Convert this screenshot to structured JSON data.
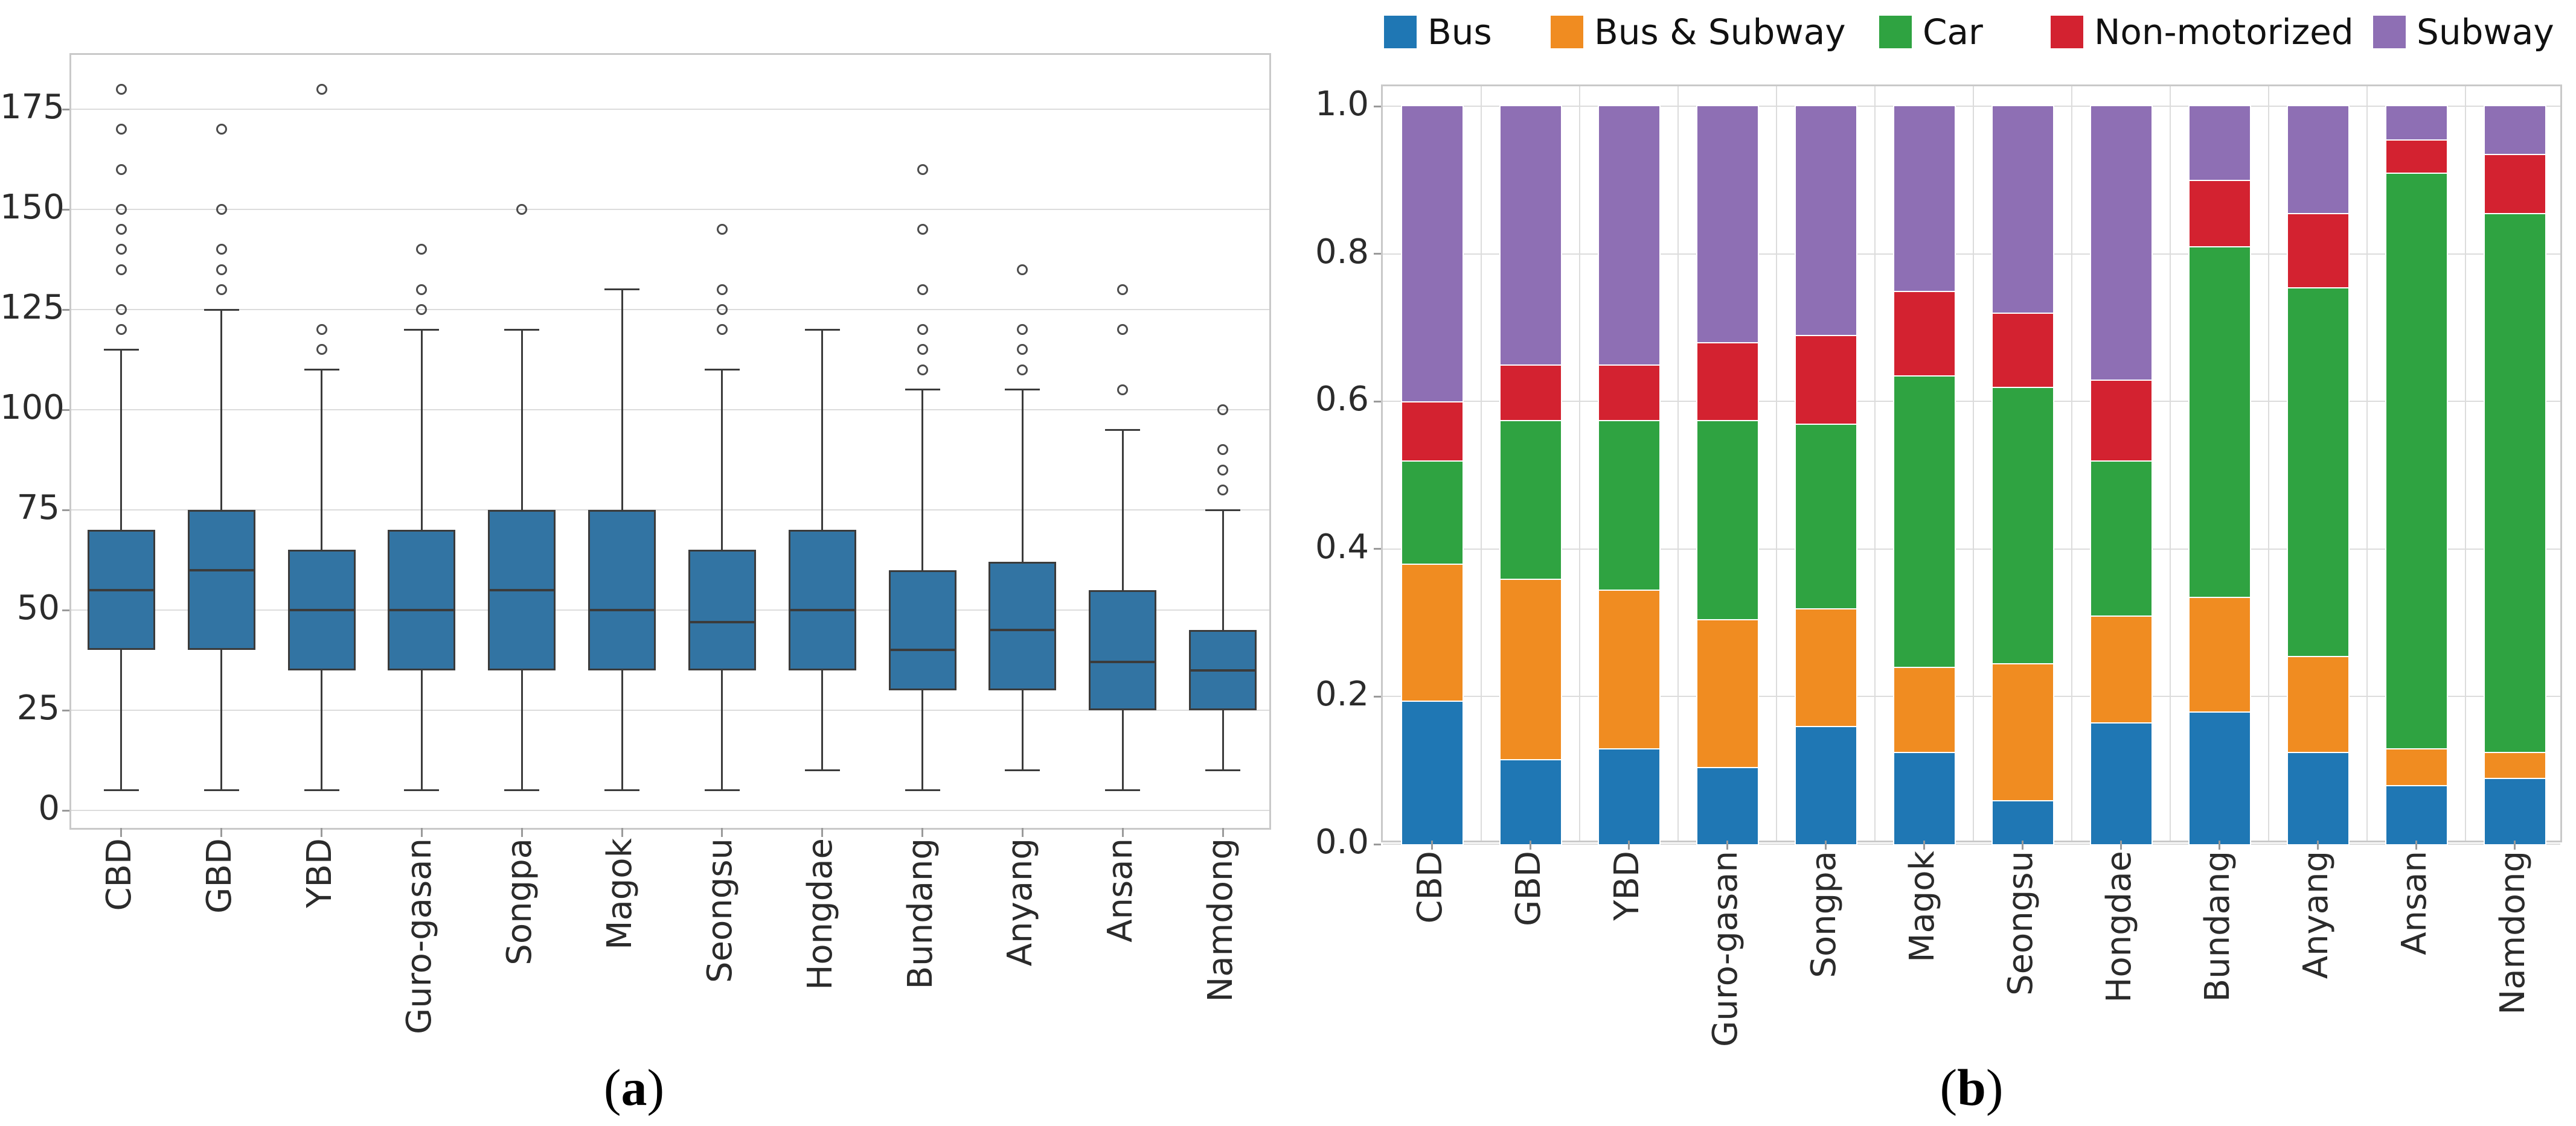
{
  "page": {
    "background": "#ffffff"
  },
  "captions": {
    "a": {
      "open": "(",
      "letter": "a",
      "close": ")"
    },
    "b": {
      "open": "(",
      "letter": "b",
      "close": ")"
    }
  },
  "palette": {
    "box_fill": "#3274a3",
    "box_edge": "#3b3b3b",
    "grid": "#dcdcdc",
    "spine": "#c9c9c9",
    "tick": "#9a9a9a",
    "text": "#2b2b2b",
    "outlier": "#4c4c4c"
  },
  "chart_data": [
    {
      "type": "box",
      "panel": "a",
      "title": "",
      "xlabel": "",
      "ylabel": "",
      "categories": [
        "CBD",
        "GBD",
        "YBD",
        "Guro-gasan",
        "Songpa",
        "Magok",
        "Seongsu",
        "Hongdae",
        "Bundang",
        "Anyang",
        "Ansan",
        "Namdong"
      ],
      "ylim": [
        -5,
        188
      ],
      "yticks": [
        0,
        25,
        50,
        75,
        100,
        125,
        150,
        175
      ],
      "grid": "horizontal",
      "boxes": [
        {
          "label": "CBD",
          "whislo": 5,
          "q1": 40,
          "med": 55,
          "q3": 70,
          "whishi": 115,
          "outliers": [
            120,
            125,
            135,
            140,
            145,
            150,
            160,
            170,
            180
          ]
        },
        {
          "label": "GBD",
          "whislo": 5,
          "q1": 40,
          "med": 60,
          "q3": 75,
          "whishi": 125,
          "outliers": [
            130,
            135,
            140,
            150,
            170
          ]
        },
        {
          "label": "YBD",
          "whislo": 5,
          "q1": 35,
          "med": 50,
          "q3": 65,
          "whishi": 110,
          "outliers": [
            115,
            120,
            180
          ]
        },
        {
          "label": "Guro-gasan",
          "whislo": 5,
          "q1": 35,
          "med": 50,
          "q3": 70,
          "whishi": 120,
          "outliers": [
            125,
            130,
            140
          ]
        },
        {
          "label": "Songpa",
          "whislo": 5,
          "q1": 35,
          "med": 55,
          "q3": 75,
          "whishi": 120,
          "outliers": [
            150
          ]
        },
        {
          "label": "Magok",
          "whislo": 5,
          "q1": 35,
          "med": 50,
          "q3": 75,
          "whishi": 130,
          "outliers": []
        },
        {
          "label": "Seongsu",
          "whislo": 5,
          "q1": 35,
          "med": 47,
          "q3": 65,
          "whishi": 110,
          "outliers": [
            120,
            125,
            130,
            145
          ]
        },
        {
          "label": "Hongdae",
          "whislo": 10,
          "q1": 35,
          "med": 50,
          "q3": 70,
          "whishi": 120,
          "outliers": []
        },
        {
          "label": "Bundang",
          "whislo": 5,
          "q1": 30,
          "med": 40,
          "q3": 60,
          "whishi": 105,
          "outliers": [
            110,
            115,
            120,
            130,
            145,
            160
          ]
        },
        {
          "label": "Anyang",
          "whislo": 10,
          "q1": 30,
          "med": 45,
          "q3": 62,
          "whishi": 105,
          "outliers": [
            110,
            115,
            120,
            135
          ]
        },
        {
          "label": "Ansan",
          "whislo": 5,
          "q1": 25,
          "med": 37,
          "q3": 55,
          "whishi": 95,
          "outliers": [
            105,
            120,
            130
          ]
        },
        {
          "label": "Namdong",
          "whislo": 10,
          "q1": 25,
          "med": 35,
          "q3": 45,
          "whishi": 75,
          "outliers": [
            80,
            85,
            90,
            100
          ]
        }
      ]
    },
    {
      "type": "bar",
      "subtype": "stacked",
      "panel": "b",
      "title": "",
      "xlabel": "",
      "ylabel": "",
      "categories": [
        "CBD",
        "GBD",
        "YBD",
        "Guro-gasan",
        "Songpa",
        "Magok",
        "Seongsu",
        "Hongdae",
        "Bundang",
        "Anyang",
        "Ansan",
        "Namdong"
      ],
      "ylim": [
        0,
        1.03
      ],
      "yticks": [
        0.0,
        0.2,
        0.4,
        0.6,
        0.8,
        1.0
      ],
      "grid": "both",
      "legend_position": "top",
      "series": [
        {
          "name": "Bus",
          "color": "#1f77b4",
          "values": [
            0.195,
            0.115,
            0.13,
            0.105,
            0.16,
            0.125,
            0.06,
            0.165,
            0.18,
            0.125,
            0.08,
            0.09
          ]
        },
        {
          "name": "Bus & Subway",
          "color": "#f08c21",
          "values": [
            0.185,
            0.245,
            0.215,
            0.2,
            0.16,
            0.115,
            0.185,
            0.145,
            0.155,
            0.13,
            0.05,
            0.035
          ]
        },
        {
          "name": "Car",
          "color": "#2fa341",
          "values": [
            0.14,
            0.215,
            0.23,
            0.27,
            0.25,
            0.395,
            0.375,
            0.21,
            0.475,
            0.5,
            0.78,
            0.73
          ]
        },
        {
          "name": "Non-motorized",
          "color": "#d32230",
          "values": [
            0.08,
            0.075,
            0.075,
            0.105,
            0.12,
            0.115,
            0.1,
            0.11,
            0.09,
            0.1,
            0.045,
            0.08
          ]
        },
        {
          "name": "Subway",
          "color": "#8e6fb4",
          "values": [
            0.4,
            0.35,
            0.35,
            0.32,
            0.31,
            0.25,
            0.28,
            0.37,
            0.1,
            0.145,
            0.045,
            0.065
          ]
        }
      ]
    }
  ]
}
